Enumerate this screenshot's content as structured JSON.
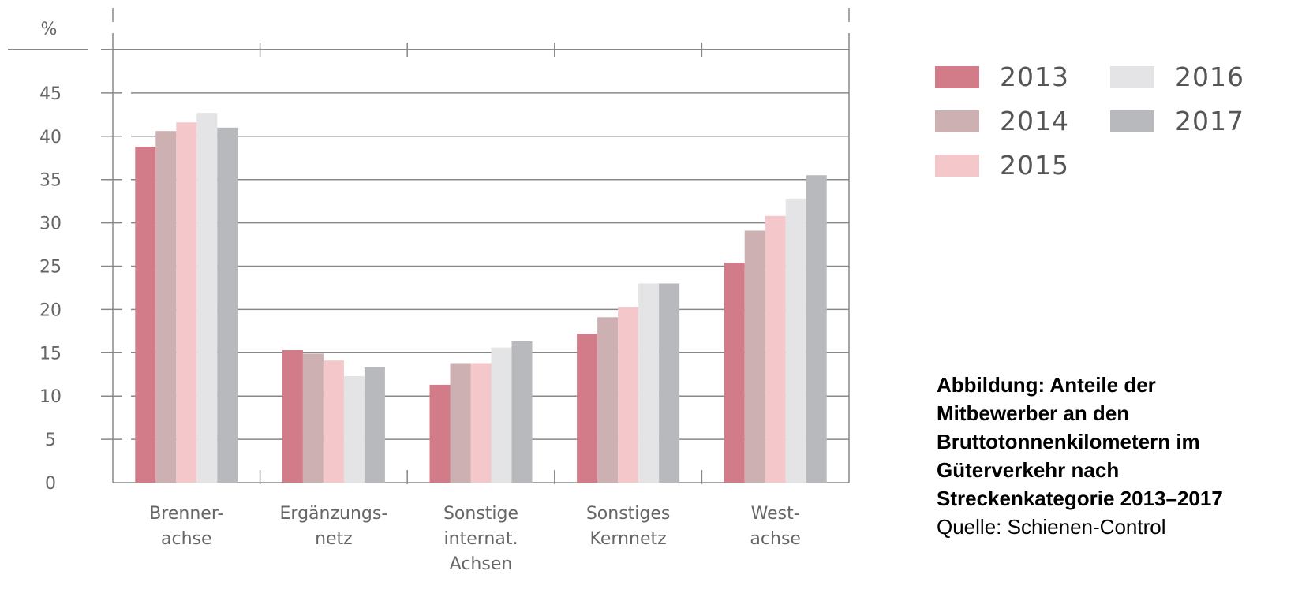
{
  "chart_data": {
    "type": "bar",
    "ylabel": "%",
    "ylim": [
      0,
      50
    ],
    "yticks": [
      "0",
      "5",
      "10",
      "15",
      "20",
      "25",
      "30",
      "35",
      "40",
      "45"
    ],
    "categories": [
      "Brenner-\nachse",
      "Ergänzungs-\nnetz",
      "Sonstige\ninternat.\nAchsen",
      "Sonstiges\nKernnetz",
      "West-\nachse"
    ],
    "series": [
      {
        "name": "2013",
        "color": "#d27c89",
        "values": [
          38.8,
          15.3,
          11.3,
          17.2,
          25.4
        ]
      },
      {
        "name": "2014",
        "color": "#cdb0b1",
        "values": [
          40.6,
          14.9,
          13.8,
          19.1,
          29.1
        ]
      },
      {
        "name": "2015",
        "color": "#f4c7cb",
        "values": [
          41.6,
          14.1,
          13.8,
          20.3,
          30.8
        ]
      },
      {
        "name": "2016",
        "color": "#e4e4e6",
        "values": [
          42.7,
          12.3,
          15.6,
          23.0,
          32.8
        ]
      },
      {
        "name": "2017",
        "color": "#b7b9bc",
        "values": [
          41.0,
          13.3,
          16.3,
          23.0,
          35.5
        ]
      }
    ],
    "grid": true,
    "legend_position": "right"
  },
  "caption": {
    "title": "Abbildung: Anteile der\nMitbewerber an den\nBruttotonnenkilometern im\nGüterverkehr nach\nStreckenkategorie 2013–2017",
    "source": "Quelle: Schienen-Control"
  }
}
